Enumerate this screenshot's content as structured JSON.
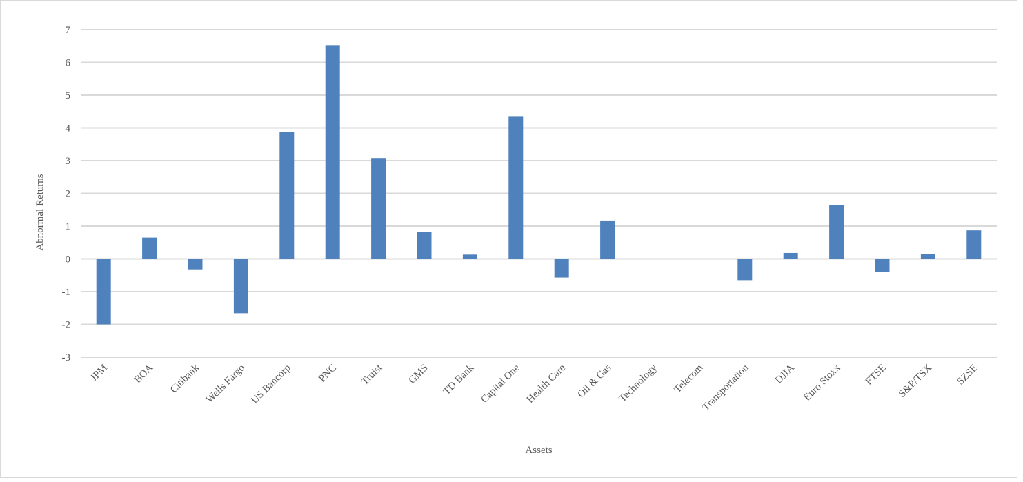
{
  "chart_data": {
    "type": "bar",
    "title": "",
    "xlabel": "Assets",
    "ylabel": "Abnormal Returns",
    "ylim": [
      -3,
      7
    ],
    "yticks": [
      7,
      6,
      5,
      4,
      3,
      2,
      1,
      0,
      -1,
      -2,
      -3
    ],
    "ytick_labels": [
      "7",
      "6",
      "5",
      "4",
      "3",
      "2",
      "1",
      "0",
      "-1",
      "-2",
      "-3"
    ],
    "grid": true,
    "legend": "none",
    "bar_color": "#4f81bd",
    "grid_color": "#d9d9d9",
    "categories": [
      "JPM",
      "BOA",
      "Citibank",
      "Wells Fargo",
      "US Bancorp",
      "PNC",
      "Truist",
      "GMS",
      "TD Bank",
      "Capital One",
      "Health Care",
      "Oil & Gas",
      "Technology",
      "Telecom",
      "Transportation",
      "DJIA",
      "Euro Stoxx",
      "FTSE",
      "S&P/TSX",
      "SZSE"
    ],
    "values": [
      -2.0,
      0.65,
      -0.32,
      -1.66,
      3.87,
      6.53,
      3.08,
      0.83,
      0.13,
      4.36,
      -0.57,
      1.17,
      0,
      0,
      -0.65,
      0.18,
      1.65,
      -0.4,
      0.14,
      0.87
    ]
  }
}
